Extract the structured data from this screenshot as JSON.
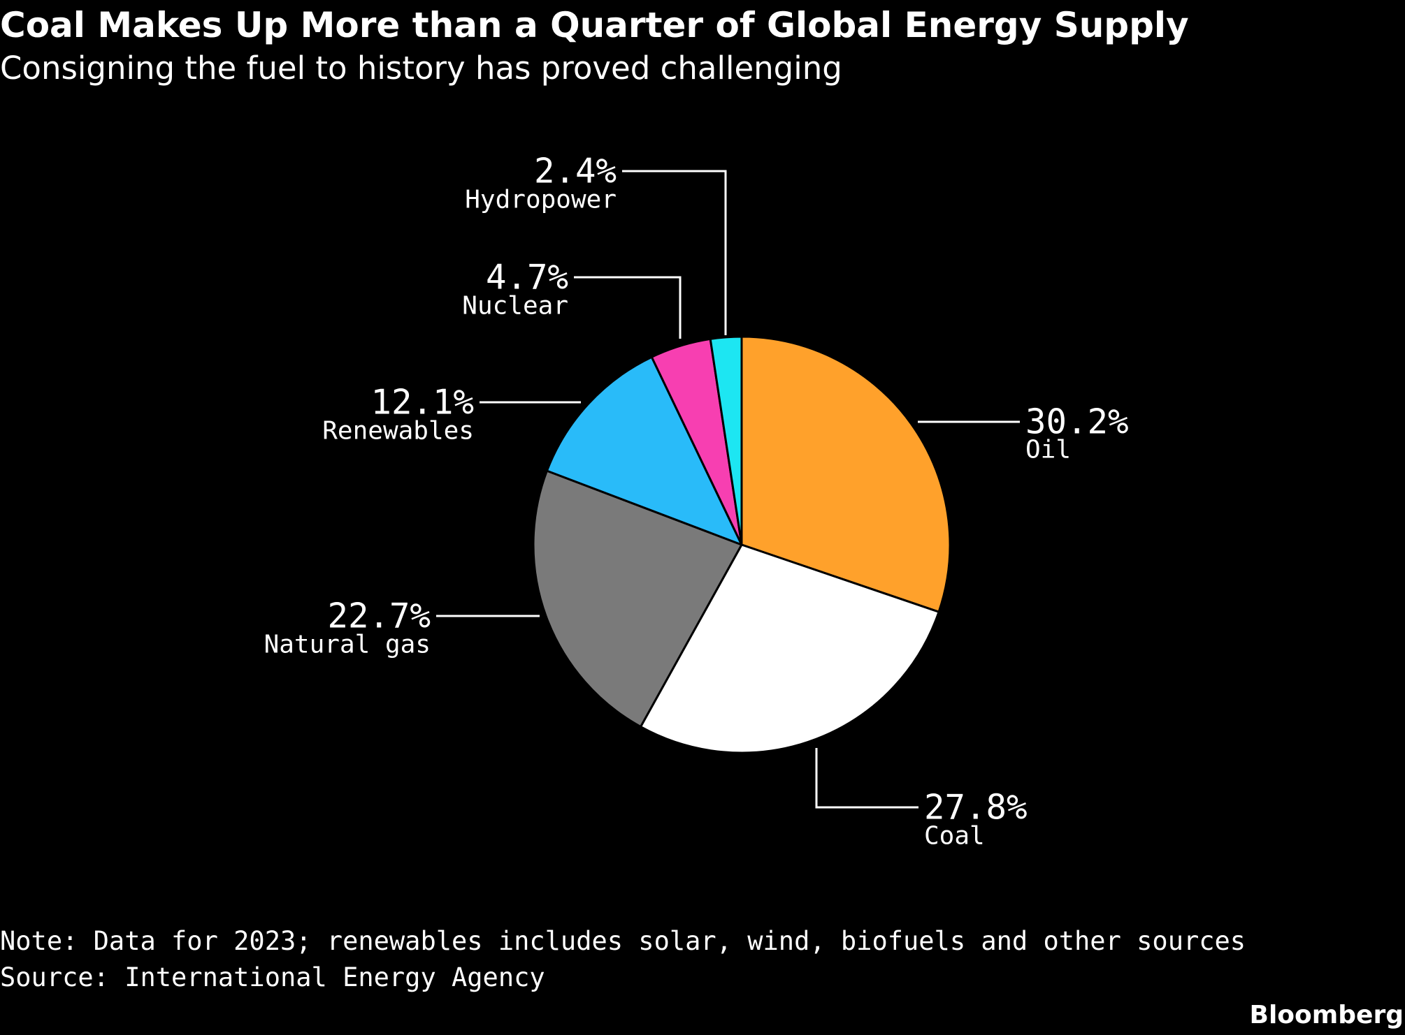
{
  "title": "Coal Makes Up More than a Quarter of Global Energy Supply",
  "subtitle": "Consigning the fuel to history has proved challenging",
  "note": "Note: Data for 2023; renewables includes solar, wind, biofuels and other sources",
  "source": "Source: International Energy Agency",
  "logo": "Bloomberg",
  "chart_data": {
    "type": "pie",
    "title": "Coal Makes Up More than a Quarter of Global Energy Supply",
    "unit": "%",
    "start": "top",
    "direction": "clockwise",
    "slices": [
      {
        "name": "Oil",
        "value": 30.2,
        "label": "30.2%",
        "color": "#ffa12b"
      },
      {
        "name": "Coal",
        "value": 27.8,
        "label": "27.8%",
        "color": "#ffffff"
      },
      {
        "name": "Natural gas",
        "value": 22.7,
        "label": "22.7%",
        "color": "#7a7a7a"
      },
      {
        "name": "Renewables",
        "value": 12.1,
        "label": "12.1%",
        "color": "#29bbf9"
      },
      {
        "name": "Nuclear",
        "value": 4.7,
        "label": "4.7%",
        "color": "#f73fb1"
      },
      {
        "name": "Hydropower",
        "value": 2.4,
        "label": "2.4%",
        "color": "#1de6f2"
      }
    ]
  }
}
